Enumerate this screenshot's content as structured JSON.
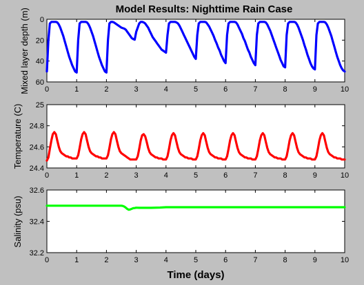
{
  "figure": {
    "title": "Model Results: Nighttime Rain Case",
    "xlabel": "Time (days)",
    "background_color": "#c0c0c0"
  },
  "chart_data": [
    {
      "type": "line",
      "title": "Model Results: Nighttime Rain Case",
      "xlabel": "",
      "ylabel": "Mixed layer depth (m)",
      "xlim": [
        0,
        10
      ],
      "ylim": [
        0,
        60
      ],
      "y_reversed": true,
      "xticks": [
        "0",
        "1",
        "2",
        "3",
        "4",
        "5",
        "6",
        "7",
        "8",
        "9",
        "10"
      ],
      "yticks": [
        "0",
        "20",
        "40",
        "60"
      ],
      "grid": false,
      "series": [
        {
          "color": "#0000ff",
          "x": [
            0,
            0.05,
            0.1,
            0.15,
            0.2,
            0.25,
            0.3,
            0.35,
            0.4,
            0.45,
            0.5,
            0.55,
            0.6,
            0.65,
            0.7,
            0.75,
            0.8,
            0.85,
            0.9,
            0.95,
            1,
            1.05,
            1.1,
            1.15,
            1.2,
            1.25,
            1.3,
            1.35,
            1.4,
            1.45,
            1.5,
            1.55,
            1.6,
            1.65,
            1.7,
            1.75,
            1.8,
            1.85,
            1.9,
            1.95,
            2,
            2.05,
            2.1,
            2.15,
            2.2,
            2.25,
            2.3,
            2.35,
            2.4,
            2.45,
            2.5,
            2.55,
            2.6,
            2.65,
            2.7,
            2.75,
            2.8,
            2.85,
            2.9,
            2.95,
            3,
            3.05,
            3.1,
            3.15,
            3.2,
            3.25,
            3.3,
            3.35,
            3.4,
            3.45,
            3.5,
            3.55,
            3.6,
            3.65,
            3.7,
            3.75,
            3.8,
            3.85,
            3.9,
            3.95,
            4,
            4.05,
            4.1,
            4.15,
            4.2,
            4.25,
            4.3,
            4.35,
            4.4,
            4.45,
            4.5,
            4.55,
            4.6,
            4.65,
            4.7,
            4.75,
            4.8,
            4.85,
            4.9,
            4.95,
            5,
            5.05,
            5.1,
            5.15,
            5.2,
            5.25,
            5.3,
            5.35,
            5.4,
            5.45,
            5.5,
            5.55,
            5.6,
            5.65,
            5.7,
            5.75,
            5.8,
            5.85,
            5.9,
            5.95,
            6,
            6.05,
            6.1,
            6.15,
            6.2,
            6.25,
            6.3,
            6.35,
            6.4,
            6.45,
            6.5,
            6.55,
            6.6,
            6.65,
            6.7,
            6.75,
            6.8,
            6.85,
            6.9,
            6.95,
            7,
            7.05,
            7.1,
            7.15,
            7.2,
            7.25,
            7.3,
            7.35,
            7.4,
            7.45,
            7.5,
            7.55,
            7.6,
            7.65,
            7.7,
            7.75,
            7.8,
            7.85,
            7.9,
            7.95,
            8,
            8.05,
            8.1,
            8.15,
            8.2,
            8.25,
            8.3,
            8.35,
            8.4,
            8.45,
            8.5,
            8.55,
            8.6,
            8.65,
            8.7,
            8.75,
            8.8,
            8.85,
            8.9,
            8.95,
            9,
            9.05,
            9.1,
            9.15,
            9.2,
            9.25,
            9.3,
            9.35,
            9.4,
            9.45,
            9.5,
            9.55,
            9.6,
            9.65,
            9.7,
            9.75,
            9.8,
            9.85,
            9.9,
            9.95,
            10
          ],
          "y": [
            50,
            20,
            4,
            2.5,
            2.5,
            2.5,
            2.5,
            3,
            5,
            8,
            12,
            16,
            21,
            26,
            31,
            36,
            40,
            44,
            47,
            50,
            51,
            20,
            4,
            2.5,
            2.5,
            2.5,
            2.5,
            3,
            5,
            8,
            12,
            16,
            21,
            26,
            31,
            36,
            40,
            44,
            47,
            50,
            51,
            20,
            4,
            2.5,
            2.5,
            3,
            4,
            5,
            6,
            7,
            8,
            8.5,
            9,
            10,
            12,
            14,
            16,
            18,
            19,
            19.5,
            12,
            8,
            4,
            2.5,
            2.5,
            3,
            4,
            6,
            8,
            11,
            14,
            17,
            19,
            21,
            23,
            25,
            27,
            29,
            30,
            31,
            32,
            15,
            4,
            2.5,
            2.5,
            2.5,
            2.5,
            3,
            4,
            6,
            9,
            12,
            15,
            18,
            21,
            24,
            27,
            30,
            33,
            36,
            38,
            15,
            4,
            2.5,
            2.5,
            2.5,
            2.5,
            3,
            5,
            7,
            10,
            13,
            16,
            20,
            23,
            27,
            30,
            34,
            37,
            40,
            42,
            15,
            4,
            2.5,
            2.5,
            2.5,
            2.5,
            3,
            5,
            8,
            11,
            14,
            18,
            21,
            25,
            29,
            32,
            36,
            39,
            42,
            44,
            15,
            4,
            2.5,
            2.5,
            2.5,
            2.5,
            3,
            5,
            8,
            11,
            15,
            19,
            23,
            27,
            31,
            35,
            39,
            42,
            45,
            46,
            15,
            4,
            2.5,
            2.5,
            2.5,
            2.5,
            3,
            5,
            8,
            12,
            16,
            20,
            25,
            29,
            34,
            38,
            42,
            45,
            47,
            48,
            15,
            4,
            2.5,
            2.5,
            2.5,
            2.5,
            3,
            5,
            8,
            12,
            16,
            21,
            26,
            31,
            36,
            40,
            44,
            47,
            49,
            50
          ]
        }
      ]
    },
    {
      "type": "line",
      "title": "",
      "xlabel": "",
      "ylabel": "Temperature (C)",
      "xlim": [
        0,
        10
      ],
      "ylim": [
        24.4,
        25
      ],
      "xticks": [
        "0",
        "1",
        "2",
        "3",
        "4",
        "5",
        "6",
        "7",
        "8",
        "9",
        "10"
      ],
      "yticks": [
        "24.4",
        "24.6",
        "24.8",
        "25"
      ],
      "grid": false,
      "series": [
        {
          "color": "#ff0000",
          "x": [
            0,
            0.05,
            0.1,
            0.15,
            0.2,
            0.25,
            0.3,
            0.35,
            0.4,
            0.45,
            0.5,
            0.55,
            0.6,
            0.65,
            0.7,
            0.75,
            0.8,
            0.85,
            0.9,
            0.95,
            1,
            1.05,
            1.1,
            1.15,
            1.2,
            1.25,
            1.3,
            1.35,
            1.4,
            1.45,
            1.5,
            1.55,
            1.6,
            1.65,
            1.7,
            1.75,
            1.8,
            1.85,
            1.9,
            1.95,
            2,
            2.05,
            2.1,
            2.15,
            2.2,
            2.25,
            2.3,
            2.35,
            2.4,
            2.45,
            2.5,
            2.55,
            2.6,
            2.65,
            2.7,
            2.75,
            2.8,
            2.85,
            2.9,
            2.95,
            3,
            3.05,
            3.1,
            3.15,
            3.2,
            3.25,
            3.3,
            3.35,
            3.4,
            3.45,
            3.5,
            3.55,
            3.6,
            3.65,
            3.7,
            3.75,
            3.8,
            3.85,
            3.9,
            3.95,
            4,
            4.05,
            4.1,
            4.15,
            4.2,
            4.25,
            4.3,
            4.35,
            4.4,
            4.45,
            4.5,
            4.55,
            4.6,
            4.65,
            4.7,
            4.75,
            4.8,
            4.85,
            4.9,
            4.95,
            5,
            5.05,
            5.1,
            5.15,
            5.2,
            5.25,
            5.3,
            5.35,
            5.4,
            5.45,
            5.5,
            5.55,
            5.6,
            5.65,
            5.7,
            5.75,
            5.8,
            5.85,
            5.9,
            5.95,
            6,
            6.05,
            6.1,
            6.15,
            6.2,
            6.25,
            6.3,
            6.35,
            6.4,
            6.45,
            6.5,
            6.55,
            6.6,
            6.65,
            6.7,
            6.75,
            6.8,
            6.85,
            6.9,
            6.95,
            7,
            7.05,
            7.1,
            7.15,
            7.2,
            7.25,
            7.3,
            7.35,
            7.4,
            7.45,
            7.5,
            7.55,
            7.6,
            7.65,
            7.7,
            7.75,
            7.8,
            7.85,
            7.9,
            7.95,
            8,
            8.05,
            8.1,
            8.15,
            8.2,
            8.25,
            8.3,
            8.35,
            8.4,
            8.45,
            8.5,
            8.55,
            8.6,
            8.65,
            8.7,
            8.75,
            8.8,
            8.85,
            8.9,
            8.95,
            9,
            9.05,
            9.1,
            9.15,
            9.2,
            9.25,
            9.3,
            9.35,
            9.4,
            9.45,
            9.5,
            9.55,
            9.6,
            9.65,
            9.7,
            9.75,
            9.8,
            9.85,
            9.9,
            9.95,
            10
          ],
          "y": [
            24.47,
            24.5,
            24.58,
            24.66,
            24.72,
            24.74,
            24.72,
            24.66,
            24.6,
            24.56,
            24.54,
            24.53,
            24.52,
            24.51,
            24.51,
            24.5,
            24.5,
            24.49,
            24.49,
            24.49,
            24.49,
            24.52,
            24.59,
            24.67,
            24.72,
            24.74,
            24.72,
            24.66,
            24.6,
            24.56,
            24.54,
            24.53,
            24.52,
            24.51,
            24.51,
            24.5,
            24.5,
            24.49,
            24.49,
            24.49,
            24.49,
            24.52,
            24.59,
            24.67,
            24.72,
            24.74,
            24.72,
            24.66,
            24.6,
            24.56,
            24.54,
            24.53,
            24.52,
            24.51,
            24.5,
            24.49,
            24.48,
            24.48,
            24.48,
            24.48,
            24.48,
            24.51,
            24.58,
            24.66,
            24.71,
            24.72,
            24.7,
            24.65,
            24.59,
            24.55,
            24.53,
            24.52,
            24.51,
            24.5,
            24.5,
            24.49,
            24.49,
            24.49,
            24.48,
            24.48,
            24.48,
            24.51,
            24.58,
            24.66,
            24.71,
            24.73,
            24.71,
            24.65,
            24.59,
            24.55,
            24.53,
            24.52,
            24.51,
            24.5,
            24.5,
            24.49,
            24.49,
            24.49,
            24.48,
            24.48,
            24.48,
            24.51,
            24.58,
            24.66,
            24.71,
            24.73,
            24.71,
            24.65,
            24.59,
            24.55,
            24.53,
            24.52,
            24.51,
            24.5,
            24.5,
            24.49,
            24.49,
            24.49,
            24.48,
            24.48,
            24.48,
            24.51,
            24.58,
            24.66,
            24.71,
            24.73,
            24.71,
            24.65,
            24.59,
            24.55,
            24.53,
            24.52,
            24.51,
            24.5,
            24.5,
            24.49,
            24.49,
            24.49,
            24.48,
            24.48,
            24.48,
            24.51,
            24.58,
            24.66,
            24.71,
            24.73,
            24.71,
            24.65,
            24.59,
            24.55,
            24.53,
            24.52,
            24.51,
            24.5,
            24.5,
            24.49,
            24.49,
            24.49,
            24.48,
            24.48,
            24.48,
            24.51,
            24.58,
            24.66,
            24.71,
            24.73,
            24.71,
            24.65,
            24.59,
            24.55,
            24.53,
            24.52,
            24.51,
            24.5,
            24.5,
            24.49,
            24.49,
            24.49,
            24.48,
            24.48,
            24.48,
            24.51,
            24.58,
            24.66,
            24.71,
            24.73,
            24.71,
            24.65,
            24.59,
            24.55,
            24.53,
            24.52,
            24.51,
            24.5,
            24.5,
            24.49,
            24.49,
            24.49,
            24.48,
            24.48,
            24.48
          ]
        }
      ]
    },
    {
      "type": "line",
      "title": "",
      "xlabel": "Time (days)",
      "ylabel": "Salinity (psu)",
      "xlim": [
        0,
        10
      ],
      "ylim": [
        32.2,
        32.6
      ],
      "xticks": [
        "0",
        "1",
        "2",
        "3",
        "4",
        "5",
        "6",
        "7",
        "8",
        "9",
        "10"
      ],
      "yticks": [
        "32.2",
        "32.4",
        "32.6"
      ],
      "grid": false,
      "series": [
        {
          "color": "#00ff00",
          "x": [
            0,
            1,
            2,
            2.5,
            2.55,
            2.6,
            2.65,
            2.7,
            2.75,
            2.8,
            2.85,
            2.9,
            2.95,
            3,
            3.1,
            3.5,
            3.8,
            4,
            5,
            6,
            7,
            8,
            9,
            10
          ],
          "y": [
            32.5,
            32.5,
            32.5,
            32.5,
            32.498,
            32.494,
            32.487,
            32.479,
            32.474,
            32.476,
            32.48,
            32.484,
            32.485,
            32.487,
            32.486,
            32.486,
            32.488,
            32.49,
            32.49,
            32.49,
            32.49,
            32.49,
            32.49,
            32.49
          ]
        }
      ]
    }
  ]
}
